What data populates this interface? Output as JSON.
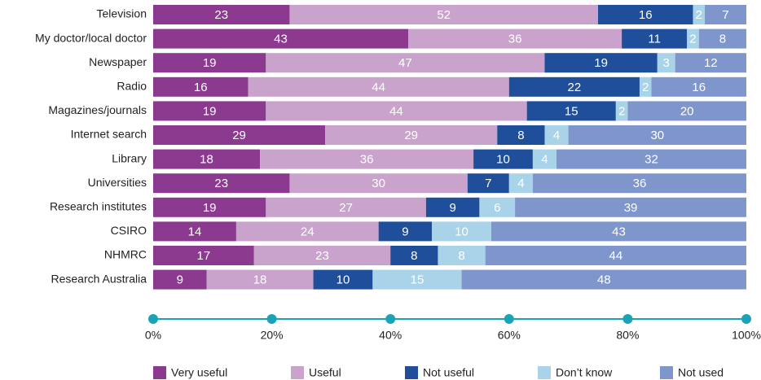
{
  "chart_data": {
    "type": "stacked-bar-horizontal",
    "categories": [
      "Television",
      "My doctor/local doctor",
      "Newspaper",
      "Radio",
      "Magazines/journals",
      "Internet search",
      "Library",
      "Universities",
      "Research institutes",
      "CSIRO",
      "NHMRC",
      "Research Australia"
    ],
    "series": [
      {
        "name": "Very useful",
        "color": "#8b3a8f",
        "values": [
          23,
          43,
          19,
          16,
          19,
          29,
          18,
          23,
          19,
          14,
          17,
          9
        ]
      },
      {
        "name": "Useful",
        "color": "#c9a3cc",
        "values": [
          52,
          36,
          47,
          44,
          44,
          29,
          36,
          30,
          27,
          24,
          23,
          18
        ]
      },
      {
        "name": "Not useful",
        "color": "#1f4e9b",
        "values": [
          16,
          11,
          19,
          22,
          15,
          8,
          10,
          7,
          9,
          9,
          8,
          10
        ]
      },
      {
        "name": "Don’t know",
        "color": "#a9d3e8",
        "values": [
          2,
          2,
          3,
          2,
          2,
          4,
          4,
          4,
          6,
          10,
          8,
          15
        ]
      },
      {
        "name": "Not used",
        "color": "#7f96cc",
        "values": [
          7,
          8,
          12,
          16,
          20,
          30,
          32,
          36,
          39,
          43,
          44,
          48
        ]
      }
    ],
    "xlim": [
      0,
      100
    ],
    "xticks": [
      {
        "value": 0,
        "label": "0%"
      },
      {
        "value": 20,
        "label": "20%"
      },
      {
        "value": 40,
        "label": "40%"
      },
      {
        "value": 60,
        "label": "60%"
      },
      {
        "value": 80,
        "label": "80%"
      },
      {
        "value": 100,
        "label": "100%"
      }
    ],
    "axis_color": "#1aa3b5",
    "legend": "bottom"
  }
}
